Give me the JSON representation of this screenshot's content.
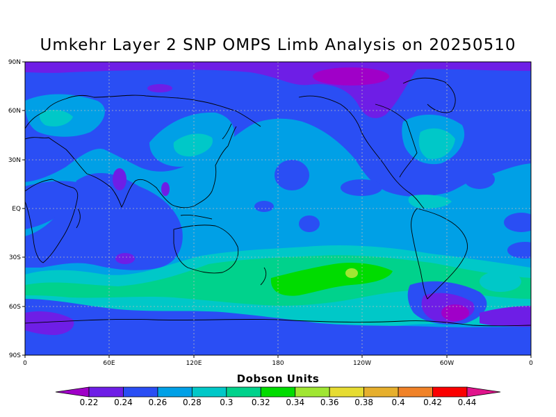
{
  "title": "Umkehr Layer 2 SNP OMPS Limb Analysis on 20250510",
  "lat_ticks": [
    "90N",
    "60N",
    "30N",
    "EQ",
    "30S",
    "60S",
    "90S"
  ],
  "lon_ticks": [
    "0",
    "60E",
    "120E",
    "180",
    "120W",
    "60W",
    "0"
  ],
  "colorbar": {
    "title": "Dobson Units",
    "levels": [
      "0.22",
      "0.24",
      "0.26",
      "0.28",
      "0.3",
      "0.32",
      "0.34",
      "0.36",
      "0.38",
      "0.4",
      "0.42",
      "0.44"
    ],
    "colors": [
      "#a000c8",
      "#6e1ee6",
      "#2a4ef4",
      "#00a0e6",
      "#00c8c8",
      "#00d28c",
      "#00dc00",
      "#a0e632",
      "#e6dc32",
      "#e6af2d",
      "#f08228",
      "#fa0000",
      "#e0148c"
    ]
  },
  "map_regions": {
    "background_dobson": "0.26",
    "low_arctic_dobson": "0.24",
    "high_southern_midlat_dobson": "0.34",
    "max_center_dobson": "0.36",
    "antarctic_low_dobson": "0.22"
  }
}
